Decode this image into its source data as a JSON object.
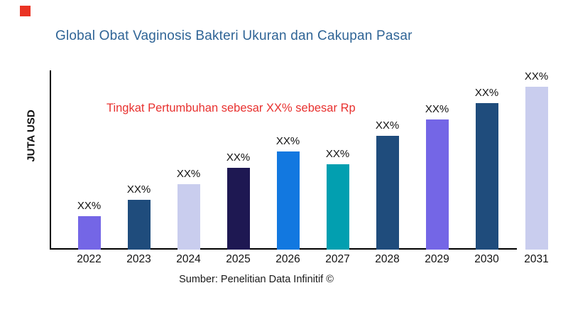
{
  "page": {
    "background": "#ffffff",
    "logo_color": "#ea3323"
  },
  "header": {
    "title": "Global Obat Vaginosis Bakteri Ukuran dan Cakupan Pasar",
    "title_color": "#2f6496"
  },
  "annotation": {
    "text": "Tingkat Pertumbuhan sebesar XX% sebesar Rp",
    "color": "#e8312f"
  },
  "axes": {
    "y_label": "JUTA USD"
  },
  "footer": {
    "source": "Sumber: Penelitian Data Infinitif ©"
  },
  "chart_data": {
    "type": "bar",
    "title": "Global Obat Vaginosis Bakteri Ukuran dan Cakupan Pasar",
    "ylabel": "JUTA USD",
    "xlabel": "",
    "categories": [
      "2022",
      "2023",
      "2024",
      "2025",
      "2026",
      "2027",
      "2028",
      "2029",
      "2030",
      "2031"
    ],
    "values_relative": [
      47,
      70,
      92,
      115,
      138,
      120,
      160,
      183,
      206,
      229
    ],
    "bar_labels": [
      "XX%",
      "XX%",
      "XX%",
      "XX%",
      "XX%",
      "XX%",
      "XX%",
      "XX%",
      "XX%",
      "XX%"
    ],
    "bar_colors": [
      "#7466e6",
      "#1f4c7c",
      "#c9cdee",
      "#1e1852",
      "#1278e0",
      "#029fb0",
      "#1f4c7c",
      "#7466e6",
      "#1f4c7c",
      "#c9cdee"
    ],
    "annotation": "Tingkat Pertumbuhan sebesar XX% sebesar Rp",
    "source": "Sumber: Penelitian Data Infinitif ©",
    "grid": false,
    "legend": false,
    "axis_note": "No numeric ticks shown; values are relative bar heights (axis unlabeled, unit JUTA USD)"
  }
}
